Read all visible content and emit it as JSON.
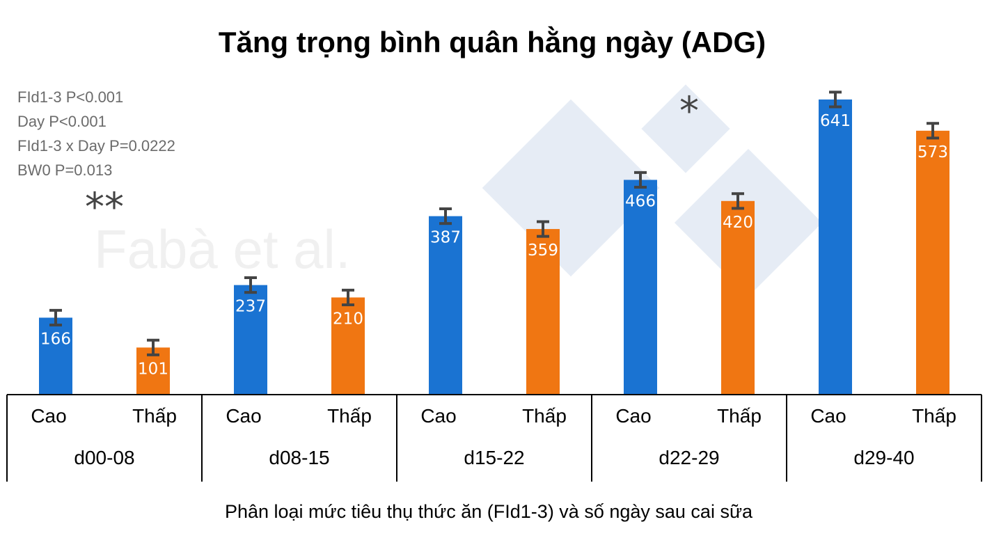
{
  "chart_data": {
    "type": "bar",
    "title": "Tăng trọng bình quân hằng ngày (ADG)",
    "xlabel": "Phân loại mức tiêu thụ thức ăn (FId1-3) và số ngày sau cai sữa",
    "ylabel": "",
    "ylim": [
      0,
      700
    ],
    "grid": false,
    "groups": [
      "d00-08",
      "d08-15",
      "d15-22",
      "d22-29",
      "d29-40"
    ],
    "series": [
      {
        "name": "Cao",
        "color": "#1a73d2",
        "values": [
          166,
          237,
          387,
          466,
          641
        ],
        "errors": [
          16,
          16,
          16,
          16,
          16
        ]
      },
      {
        "name": "Thấp",
        "color": "#f07612",
        "values": [
          101,
          210,
          359,
          420,
          573
        ],
        "errors": [
          16,
          16,
          16,
          16,
          16
        ]
      }
    ],
    "significance": [
      "**",
      "",
      "",
      "*",
      "**"
    ],
    "annotations": [
      "FId1-3 P<0.001",
      "Day P<0.001",
      "FId1-3 x Day P=0.0222",
      "BW0 P=0.013"
    ],
    "watermark": "Fabà et al."
  }
}
